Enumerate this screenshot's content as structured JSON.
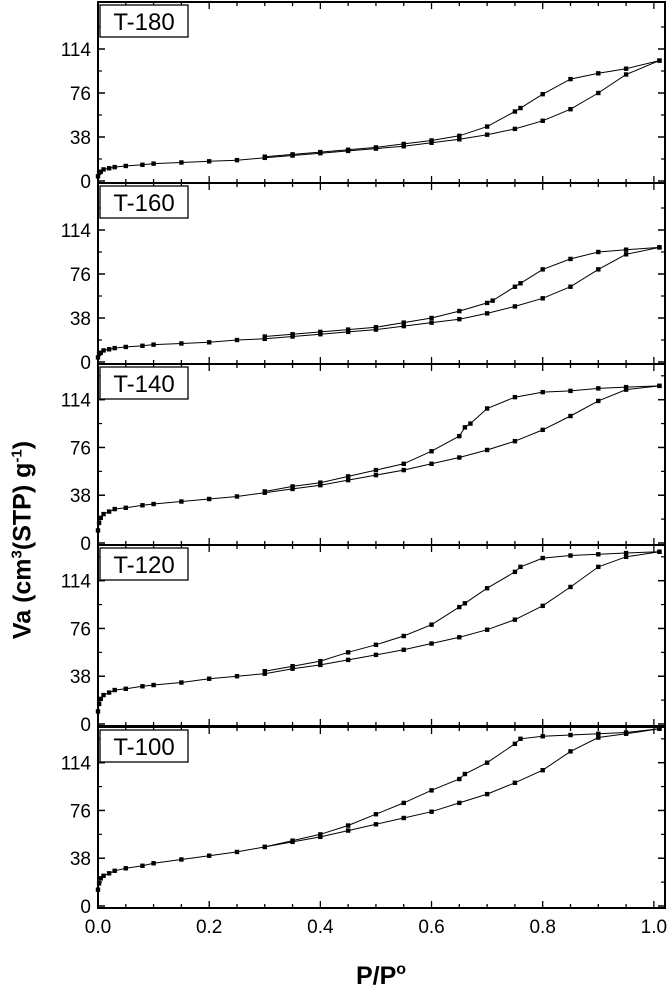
{
  "figure": {
    "xlabel_main": "P/P",
    "xlabel_sup": "o",
    "ylabel_pre": "Va (cm",
    "ylabel_sup1": "3",
    "ylabel_mid": "(STP) g",
    "ylabel_sup2": "-1",
    "ylabel_post": ")"
  },
  "chart_data": [
    {
      "type": "line",
      "title": "T-180",
      "xlim": [
        0,
        1.02
      ],
      "ylim": [
        0,
        152
      ],
      "yticks": [
        0,
        38,
        76,
        114
      ],
      "xticks": [
        0.0,
        0.2,
        0.4,
        0.6,
        0.8,
        1.0
      ],
      "series": [
        {
          "values": [
            [
              0.0,
              4
            ],
            [
              0.002,
              7
            ],
            [
              0.005,
              8
            ],
            [
              0.01,
              10
            ],
            [
              0.02,
              11
            ],
            [
              0.03,
              12
            ],
            [
              0.05,
              13
            ],
            [
              0.08,
              14
            ],
            [
              0.1,
              15
            ],
            [
              0.15,
              16
            ],
            [
              0.2,
              17
            ],
            [
              0.25,
              18
            ],
            [
              0.3,
              20
            ],
            [
              0.35,
              22
            ],
            [
              0.4,
              24
            ],
            [
              0.45,
              26
            ],
            [
              0.5,
              28
            ],
            [
              0.55,
              30
            ],
            [
              0.6,
              33
            ],
            [
              0.65,
              36
            ],
            [
              0.7,
              40
            ],
            [
              0.75,
              45
            ],
            [
              0.8,
              52
            ],
            [
              0.85,
              62
            ],
            [
              0.9,
              76
            ],
            [
              0.95,
              92
            ],
            [
              1.01,
              104
            ]
          ]
        },
        {
          "values": [
            [
              1.01,
              104
            ],
            [
              0.95,
              97
            ],
            [
              0.9,
              93
            ],
            [
              0.85,
              88
            ],
            [
              0.8,
              75
            ],
            [
              0.76,
              63
            ],
            [
              0.75,
              60
            ],
            [
              0.7,
              47
            ],
            [
              0.65,
              39
            ],
            [
              0.6,
              35
            ],
            [
              0.55,
              32
            ],
            [
              0.5,
              29
            ],
            [
              0.45,
              27
            ],
            [
              0.4,
              25
            ],
            [
              0.35,
              23
            ],
            [
              0.3,
              21
            ]
          ]
        }
      ]
    },
    {
      "type": "line",
      "title": "T-160",
      "xlim": [
        0,
        1.02
      ],
      "ylim": [
        0,
        152
      ],
      "yticks": [
        0,
        38,
        76,
        114
      ],
      "xticks": [
        0.0,
        0.2,
        0.4,
        0.6,
        0.8,
        1.0
      ],
      "series": [
        {
          "values": [
            [
              0.0,
              4
            ],
            [
              0.002,
              7
            ],
            [
              0.005,
              8
            ],
            [
              0.01,
              10
            ],
            [
              0.02,
              11
            ],
            [
              0.03,
              12
            ],
            [
              0.05,
              13
            ],
            [
              0.08,
              14
            ],
            [
              0.1,
              15
            ],
            [
              0.15,
              16
            ],
            [
              0.2,
              17
            ],
            [
              0.25,
              19
            ],
            [
              0.3,
              20
            ],
            [
              0.35,
              22
            ],
            [
              0.4,
              24
            ],
            [
              0.45,
              26
            ],
            [
              0.5,
              28
            ],
            [
              0.55,
              31
            ],
            [
              0.6,
              34
            ],
            [
              0.65,
              37
            ],
            [
              0.7,
              42
            ],
            [
              0.75,
              48
            ],
            [
              0.8,
              55
            ],
            [
              0.85,
              65
            ],
            [
              0.9,
              80
            ],
            [
              0.95,
              93
            ],
            [
              1.01,
              99
            ]
          ]
        },
        {
          "values": [
            [
              1.01,
              99
            ],
            [
              0.95,
              97
            ],
            [
              0.9,
              95
            ],
            [
              0.85,
              89
            ],
            [
              0.8,
              80
            ],
            [
              0.76,
              68
            ],
            [
              0.75,
              65
            ],
            [
              0.71,
              53
            ],
            [
              0.7,
              51
            ],
            [
              0.65,
              44
            ],
            [
              0.6,
              38
            ],
            [
              0.55,
              34
            ],
            [
              0.5,
              30
            ],
            [
              0.45,
              28
            ],
            [
              0.4,
              26
            ],
            [
              0.35,
              24
            ],
            [
              0.3,
              22
            ]
          ]
        }
      ]
    },
    {
      "type": "line",
      "title": "T-140",
      "xlim": [
        0,
        1.02
      ],
      "ylim": [
        0,
        140
      ],
      "yticks": [
        0,
        38,
        76,
        114
      ],
      "xticks": [
        0.0,
        0.2,
        0.4,
        0.6,
        0.8,
        1.0
      ],
      "series": [
        {
          "values": [
            [
              0.0,
              10
            ],
            [
              0.002,
              16
            ],
            [
              0.005,
              20
            ],
            [
              0.01,
              23
            ],
            [
              0.02,
              25
            ],
            [
              0.03,
              27
            ],
            [
              0.05,
              28
            ],
            [
              0.08,
              30
            ],
            [
              0.1,
              31
            ],
            [
              0.15,
              33
            ],
            [
              0.2,
              35
            ],
            [
              0.25,
              37
            ],
            [
              0.3,
              40
            ],
            [
              0.35,
              43
            ],
            [
              0.4,
              46
            ],
            [
              0.45,
              50
            ],
            [
              0.5,
              54
            ],
            [
              0.55,
              58
            ],
            [
              0.6,
              63
            ],
            [
              0.65,
              68
            ],
            [
              0.7,
              74
            ],
            [
              0.75,
              81
            ],
            [
              0.8,
              90
            ],
            [
              0.85,
              101
            ],
            [
              0.9,
              113
            ],
            [
              0.95,
              122
            ],
            [
              1.01,
              125
            ]
          ]
        },
        {
          "values": [
            [
              1.01,
              125
            ],
            [
              0.95,
              124
            ],
            [
              0.9,
              123
            ],
            [
              0.85,
              121
            ],
            [
              0.8,
              120
            ],
            [
              0.75,
              116
            ],
            [
              0.7,
              107
            ],
            [
              0.67,
              95
            ],
            [
              0.66,
              92
            ],
            [
              0.65,
              85
            ],
            [
              0.6,
              73
            ],
            [
              0.55,
              63
            ],
            [
              0.5,
              58
            ],
            [
              0.45,
              53
            ],
            [
              0.4,
              48
            ],
            [
              0.35,
              45
            ],
            [
              0.3,
              41
            ]
          ]
        }
      ]
    },
    {
      "type": "line",
      "title": "T-120",
      "xlim": [
        0,
        1.02
      ],
      "ylim": [
        0,
        140
      ],
      "yticks": [
        0,
        38,
        76,
        114
      ],
      "xticks": [
        0.0,
        0.2,
        0.4,
        0.6,
        0.8,
        1.0
      ],
      "series": [
        {
          "values": [
            [
              0.0,
              10
            ],
            [
              0.002,
              16
            ],
            [
              0.005,
              20
            ],
            [
              0.01,
              23
            ],
            [
              0.02,
              25
            ],
            [
              0.03,
              27
            ],
            [
              0.05,
              28
            ],
            [
              0.08,
              30
            ],
            [
              0.1,
              31
            ],
            [
              0.15,
              33
            ],
            [
              0.2,
              36
            ],
            [
              0.25,
              38
            ],
            [
              0.3,
              40
            ],
            [
              0.35,
              44
            ],
            [
              0.4,
              47
            ],
            [
              0.45,
              51
            ],
            [
              0.5,
              55
            ],
            [
              0.55,
              59
            ],
            [
              0.6,
              64
            ],
            [
              0.65,
              69
            ],
            [
              0.7,
              75
            ],
            [
              0.75,
              83
            ],
            [
              0.8,
              94
            ],
            [
              0.85,
              109
            ],
            [
              0.9,
              125
            ],
            [
              0.95,
              133
            ],
            [
              1.01,
              137
            ]
          ]
        },
        {
          "values": [
            [
              1.01,
              137
            ],
            [
              0.95,
              136
            ],
            [
              0.9,
              135
            ],
            [
              0.85,
              134
            ],
            [
              0.8,
              132
            ],
            [
              0.76,
              125
            ],
            [
              0.75,
              121
            ],
            [
              0.7,
              108
            ],
            [
              0.66,
              96
            ],
            [
              0.65,
              93
            ],
            [
              0.6,
              79
            ],
            [
              0.55,
              70
            ],
            [
              0.5,
              63
            ],
            [
              0.45,
              57
            ],
            [
              0.4,
              50
            ],
            [
              0.35,
              46
            ],
            [
              0.3,
              42
            ]
          ]
        }
      ]
    },
    {
      "type": "line",
      "title": "T-100",
      "xlim": [
        0,
        1.02
      ],
      "ylim": [
        0,
        140
      ],
      "yticks": [
        0,
        38,
        76,
        114
      ],
      "xticks": [
        0.0,
        0.2,
        0.4,
        0.6,
        0.8,
        1.0
      ],
      "series": [
        {
          "values": [
            [
              0.0,
              13
            ],
            [
              0.002,
              18
            ],
            [
              0.005,
              22
            ],
            [
              0.01,
              24
            ],
            [
              0.02,
              26
            ],
            [
              0.03,
              28
            ],
            [
              0.05,
              30
            ],
            [
              0.08,
              32
            ],
            [
              0.1,
              34
            ],
            [
              0.15,
              37
            ],
            [
              0.2,
              40
            ],
            [
              0.25,
              43
            ],
            [
              0.3,
              47
            ],
            [
              0.35,
              51
            ],
            [
              0.4,
              55
            ],
            [
              0.45,
              60
            ],
            [
              0.5,
              65
            ],
            [
              0.55,
              70
            ],
            [
              0.6,
              75
            ],
            [
              0.65,
              82
            ],
            [
              0.7,
              89
            ],
            [
              0.75,
              98
            ],
            [
              0.8,
              108
            ],
            [
              0.85,
              123
            ],
            [
              0.9,
              134
            ],
            [
              0.95,
              137
            ],
            [
              1.01,
              141
            ]
          ]
        },
        {
          "values": [
            [
              1.01,
              141
            ],
            [
              0.95,
              138
            ],
            [
              0.9,
              137
            ],
            [
              0.85,
              136
            ],
            [
              0.8,
              135
            ],
            [
              0.76,
              133
            ],
            [
              0.75,
              129
            ],
            [
              0.7,
              114
            ],
            [
              0.66,
              105
            ],
            [
              0.65,
              101
            ],
            [
              0.6,
              92
            ],
            [
              0.55,
              82
            ],
            [
              0.5,
              73
            ],
            [
              0.45,
              64
            ],
            [
              0.4,
              57
            ],
            [
              0.35,
              52
            ],
            [
              0.3,
              47
            ]
          ]
        }
      ]
    }
  ]
}
